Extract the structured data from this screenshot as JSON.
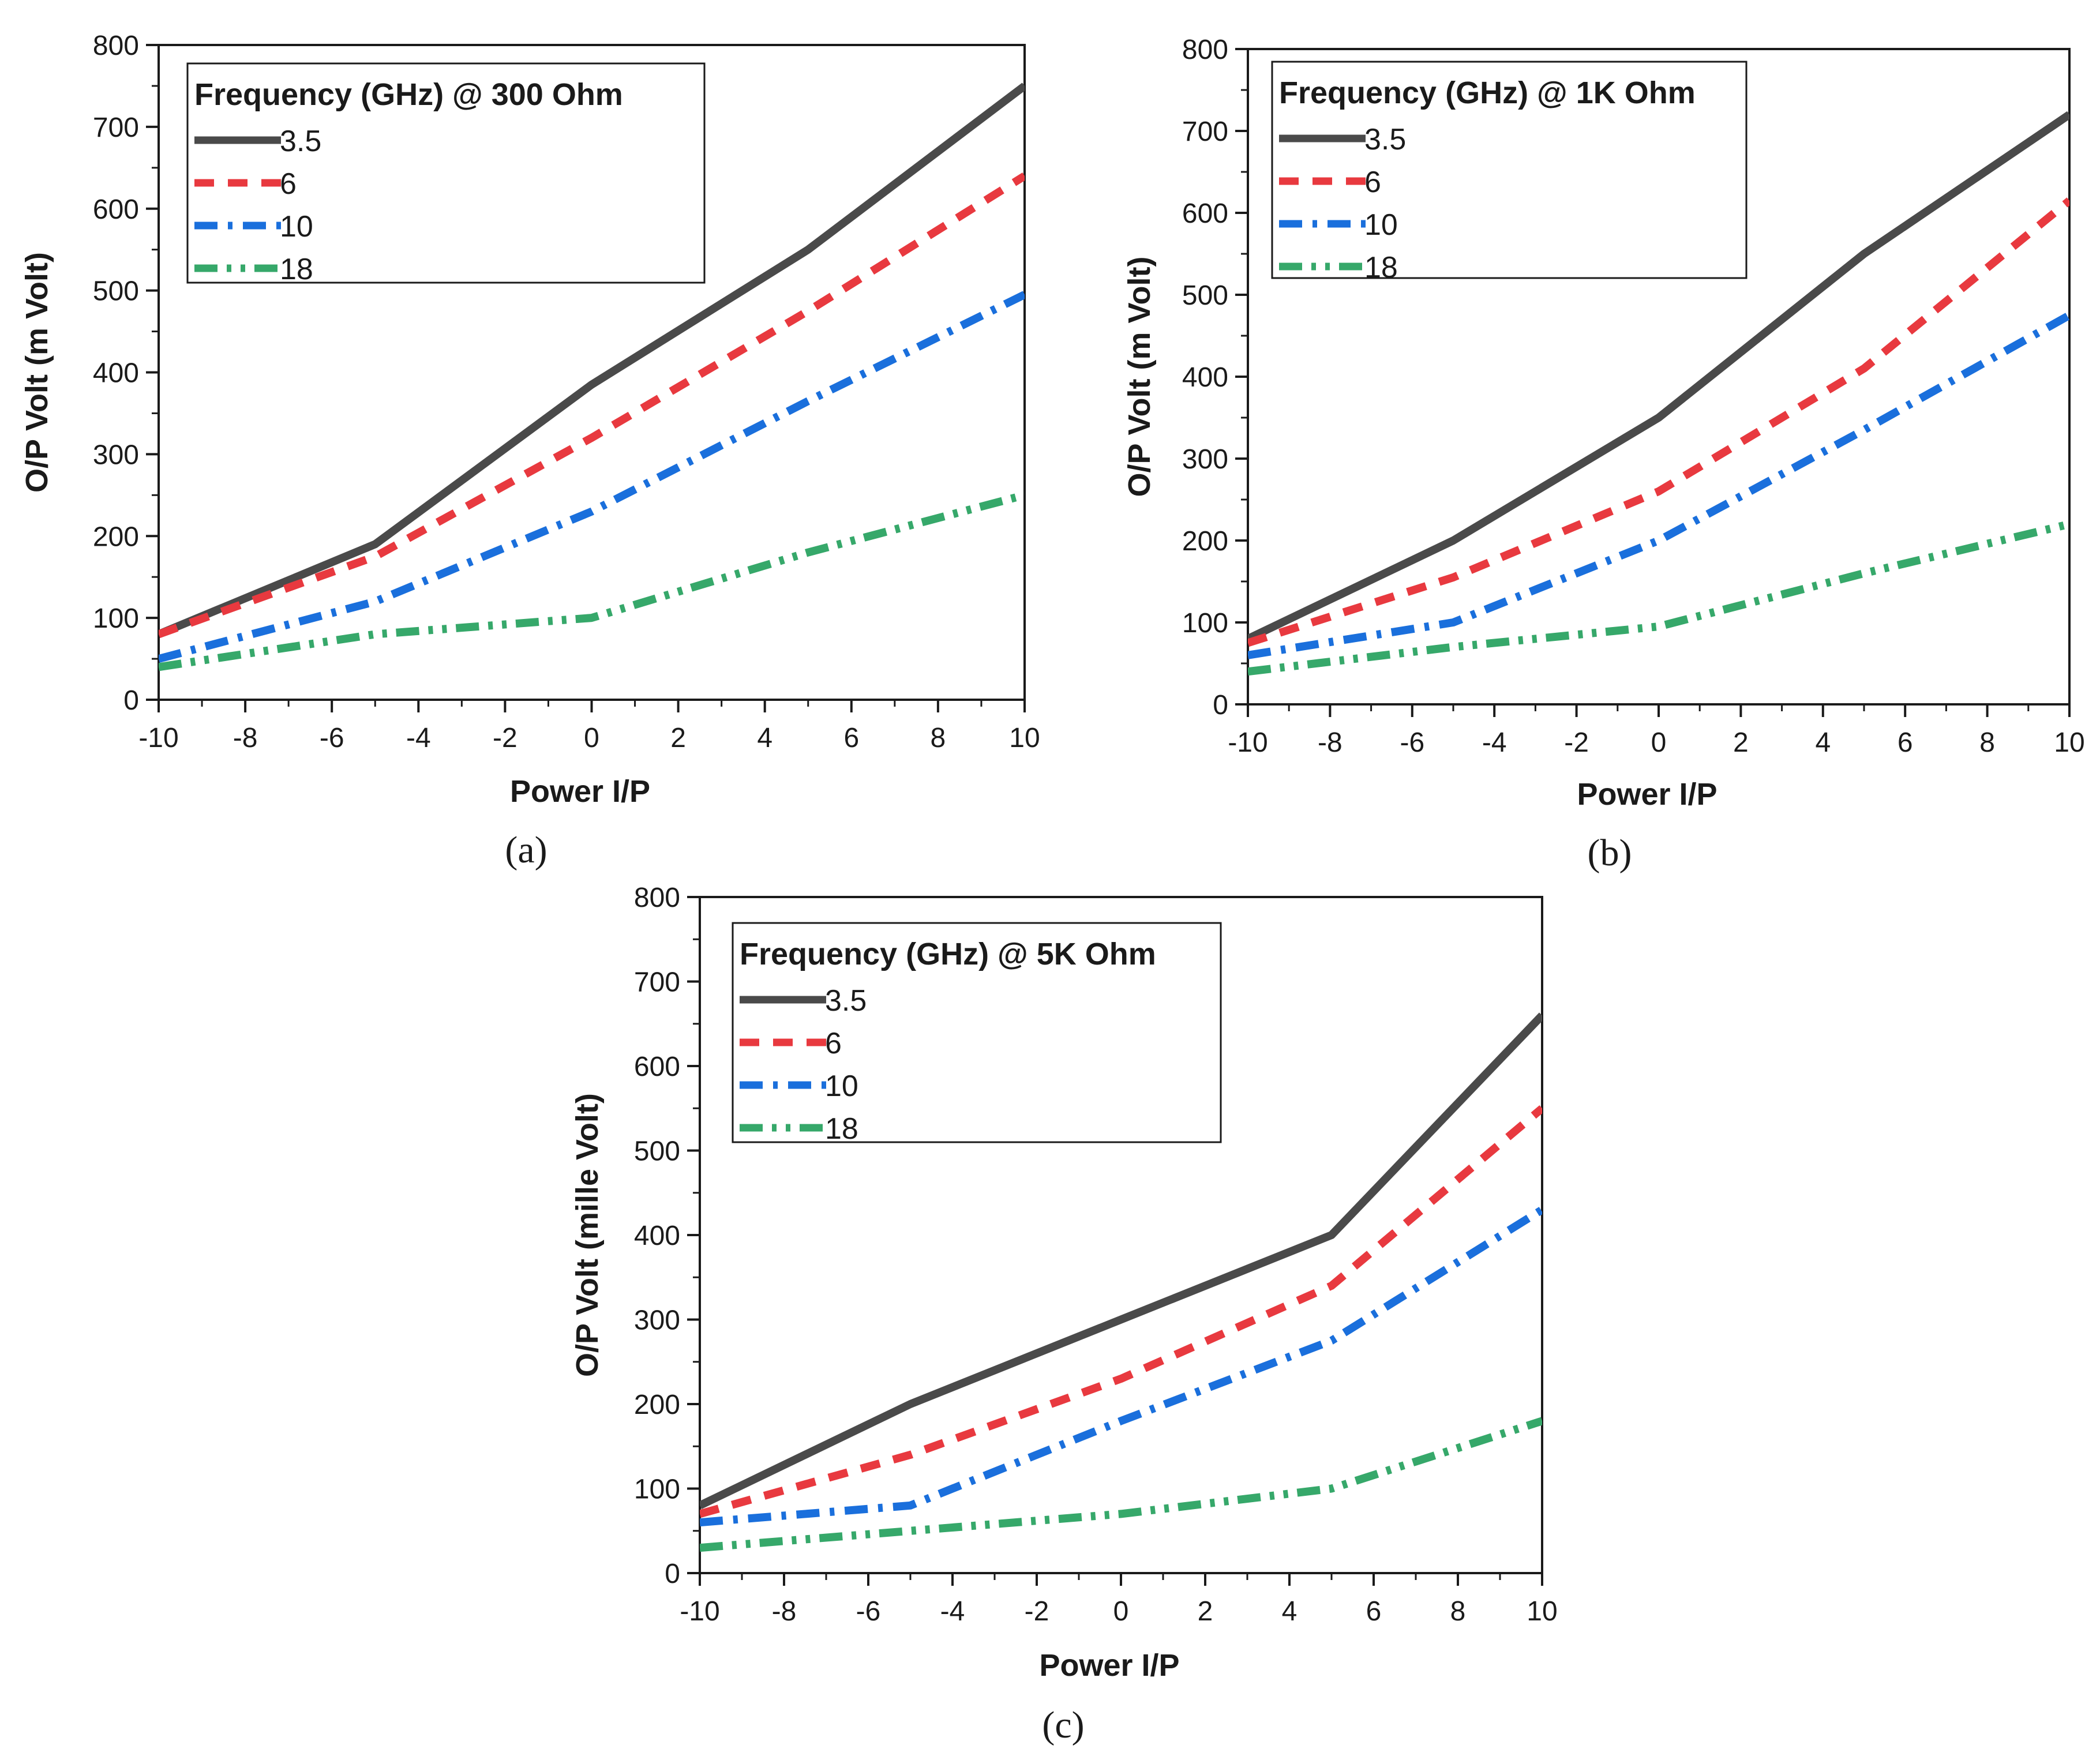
{
  "figure": {
    "panel_labels": [
      "(a)",
      "(b)",
      "(c)"
    ]
  },
  "series_styles": [
    {
      "name": "3.5",
      "color": "#4a4a4a",
      "dash": "solid"
    },
    {
      "name": "6",
      "color": "#e8393f",
      "dash": "dash"
    },
    {
      "name": "10",
      "color": "#1a6fdc",
      "dash": "dashdot"
    },
    {
      "name": "18",
      "color": "#36a86a",
      "dash": "dashdotdot"
    }
  ],
  "chart_data": [
    {
      "type": "line",
      "panel": "(a)",
      "legend_title": "Frequency (GHz) @ 300 Ohm",
      "xlabel": "Power I/P",
      "ylabel": "O/P Volt (m Volt)",
      "xlim": [
        -10,
        10
      ],
      "ylim": [
        0,
        800
      ],
      "xticks": [
        -10,
        -8,
        -6,
        -4,
        -2,
        0,
        2,
        4,
        6,
        8,
        10
      ],
      "yticks": [
        0,
        100,
        200,
        300,
        400,
        500,
        600,
        700,
        800
      ],
      "x": [
        -10,
        -5,
        0,
        5,
        10
      ],
      "series": [
        {
          "name": "3.5",
          "values": [
            80,
            190,
            385,
            550,
            750
          ]
        },
        {
          "name": "6",
          "values": [
            80,
            175,
            320,
            475,
            640
          ]
        },
        {
          "name": "10",
          "values": [
            50,
            120,
            230,
            365,
            495
          ]
        },
        {
          "name": "18",
          "values": [
            40,
            80,
            100,
            180,
            250
          ]
        }
      ]
    },
    {
      "type": "line",
      "panel": "(b)",
      "legend_title": "Frequency (GHz) @  1K Ohm",
      "xlabel": "Power I/P",
      "ylabel": "O/P  Volt (m Volt)",
      "xlim": [
        -10,
        10
      ],
      "ylim": [
        0,
        800
      ],
      "xticks": [
        -10,
        -8,
        -6,
        -4,
        -2,
        0,
        2,
        4,
        6,
        8,
        10
      ],
      "yticks": [
        0,
        100,
        200,
        300,
        400,
        500,
        600,
        700,
        800
      ],
      "x": [
        -10,
        -5,
        0,
        5,
        10
      ],
      "series": [
        {
          "name": "3.5",
          "values": [
            80,
            200,
            350,
            550,
            720
          ]
        },
        {
          "name": "6",
          "values": [
            75,
            155,
            260,
            410,
            615
          ]
        },
        {
          "name": "10",
          "values": [
            60,
            100,
            200,
            335,
            475
          ]
        },
        {
          "name": "18",
          "values": [
            40,
            70,
            95,
            160,
            220
          ]
        }
      ]
    },
    {
      "type": "line",
      "panel": "(c)",
      "legend_title": "Frequency (GHz) @ 5K Ohm",
      "xlabel": "Power I/P",
      "ylabel": "O/P  Volt (mille Volt)",
      "xlim": [
        -10,
        10
      ],
      "ylim": [
        0,
        800
      ],
      "xticks": [
        -10,
        -8,
        -6,
        -4,
        -2,
        0,
        2,
        4,
        6,
        8,
        10
      ],
      "yticks": [
        0,
        100,
        200,
        300,
        400,
        500,
        600,
        700,
        800
      ],
      "x": [
        -10,
        -5,
        0,
        5,
        10
      ],
      "series": [
        {
          "name": "3.5",
          "values": [
            80,
            200,
            300,
            400,
            660
          ]
        },
        {
          "name": "6",
          "values": [
            70,
            140,
            230,
            340,
            550
          ]
        },
        {
          "name": "10",
          "values": [
            60,
            80,
            180,
            275,
            430
          ]
        },
        {
          "name": "18",
          "values": [
            30,
            50,
            70,
            100,
            180
          ]
        }
      ]
    }
  ]
}
